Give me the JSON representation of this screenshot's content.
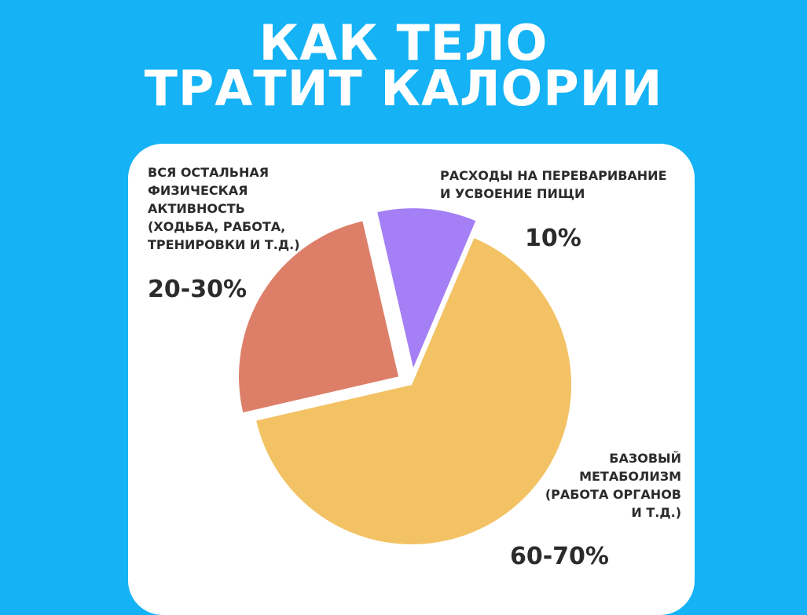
{
  "title": {
    "line1": "КАК ТЕЛО",
    "line2": "ТРАТИТ КАЛОРИИ"
  },
  "colors": {
    "background": "#15b2f5",
    "card": "#ffffff",
    "activity": "#dd7f68",
    "digestion": "#a47ff5",
    "bmr": "#f3c264",
    "text": "#2b2b2b"
  },
  "chart_data": {
    "type": "pie",
    "title": "КАК ТЕЛО ТРАТИТ КАЛОРИИ",
    "legend": "none",
    "slices": [
      {
        "key": "digestion",
        "label_lines": [
          "РАСХОДЫ НА ПЕРЕВАРИВАНИЕ",
          "И УСВОЕНИЕ ПИЩИ"
        ],
        "value_text": "10%",
        "value": 10,
        "color": "#a47ff5"
      },
      {
        "key": "bmr",
        "label_lines": [
          "БАЗОВЫЙ",
          "МЕТАБОЛИЗМ",
          "(РАБОТА ОРГАНОВ",
          "И Т.Д.)"
        ],
        "value_text": "60-70%",
        "value": 65,
        "color": "#f3c264"
      },
      {
        "key": "activity",
        "label_lines": [
          "ВСЯ ОСТАЛЬНАЯ",
          "ФИЗИЧЕСКАЯ",
          "АКТИВНОСТЬ",
          "(ХОДЬБА, РАБОТА,",
          "ТРЕНИРОВКИ И Т.Д.)"
        ],
        "value_text": "20-30%",
        "value": 25,
        "color": "#dd7f68"
      }
    ]
  }
}
